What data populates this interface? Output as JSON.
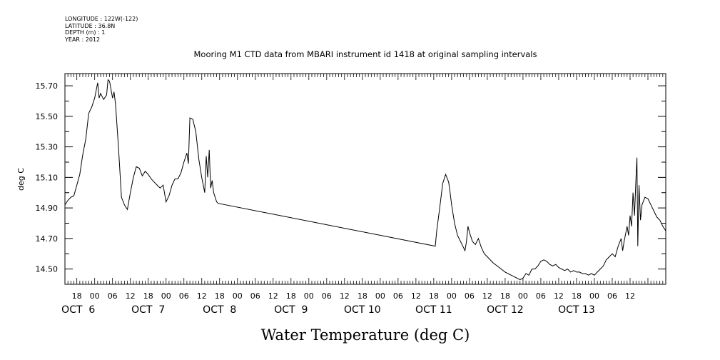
{
  "metadata": {
    "longitude": "LONGITUDE : 122W(-122)",
    "latitude": "LATITUDE : 36.8N",
    "depth": "DEPTH (m) : 1",
    "year": "YEAR : 2012"
  },
  "chart_data": {
    "type": "line",
    "title": "Mooring M1 CTD data from MBARI instrument id 1418 at original sampling intervals",
    "xlabel": "Water Temperature (deg C)",
    "ylabel": "deg C",
    "xlim_hours": [
      -10,
      192
    ],
    "ylim": [
      14.4,
      15.78
    ],
    "yticks": [
      "14.50",
      "14.70",
      "14.90",
      "15.10",
      "15.30",
      "15.50",
      "15.70"
    ],
    "x_time_ticks": [
      "18",
      "00",
      "06",
      "12",
      "18",
      "00",
      "06",
      "12",
      "18",
      "00",
      "06",
      "12",
      "18",
      "00",
      "06",
      "12",
      "18",
      "00",
      "06",
      "12",
      "18",
      "00",
      "06",
      "12",
      "18",
      "00",
      "06",
      "12",
      "18",
      "00",
      "06",
      "12"
    ],
    "x_day_labels": [
      "OCT  6",
      "OCT  7",
      "OCT  8",
      "OCT  9",
      "OCT 10",
      "OCT 11",
      "OCT 12",
      "OCT 13"
    ],
    "grid": false,
    "series": [
      {
        "color": "#000000",
        "points": [
          [
            -10,
            14.92
          ],
          [
            -9,
            14.95
          ],
          [
            -8,
            14.97
          ],
          [
            -7,
            14.98
          ],
          [
            -6,
            15.05
          ],
          [
            -5,
            15.12
          ],
          [
            -4,
            15.25
          ],
          [
            -3,
            15.35
          ],
          [
            -2,
            15.52
          ],
          [
            -1,
            15.56
          ],
          [
            0,
            15.62
          ],
          [
            1,
            15.72
          ],
          [
            1.5,
            15.62
          ],
          [
            2,
            15.65
          ],
          [
            3,
            15.61
          ],
          [
            4,
            15.64
          ],
          [
            4.5,
            15.74
          ],
          [
            5,
            15.73
          ],
          [
            6,
            15.62
          ],
          [
            6.5,
            15.66
          ],
          [
            7,
            15.58
          ],
          [
            8,
            15.3
          ],
          [
            9,
            14.97
          ],
          [
            10,
            14.92
          ],
          [
            11,
            14.89
          ],
          [
            12,
            15.0
          ],
          [
            13,
            15.1
          ],
          [
            14,
            15.17
          ],
          [
            15,
            15.16
          ],
          [
            16,
            15.11
          ],
          [
            17,
            15.14
          ],
          [
            18,
            15.12
          ],
          [
            19,
            15.09
          ],
          [
            20,
            15.07
          ],
          [
            21,
            15.05
          ],
          [
            22,
            15.03
          ],
          [
            23,
            15.05
          ],
          [
            24,
            14.94
          ],
          [
            25,
            14.98
          ],
          [
            26,
            15.05
          ],
          [
            27,
            15.09
          ],
          [
            28,
            15.09
          ],
          [
            29,
            15.13
          ],
          [
            30,
            15.2
          ],
          [
            31,
            15.26
          ],
          [
            31.5,
            15.19
          ],
          [
            32,
            15.49
          ],
          [
            33,
            15.48
          ],
          [
            34,
            15.4
          ],
          [
            35,
            15.22
          ],
          [
            36,
            15.1
          ],
          [
            37,
            15.0
          ],
          [
            37.5,
            15.24
          ],
          [
            38,
            15.1
          ],
          [
            38.5,
            15.28
          ],
          [
            39,
            15.03
          ],
          [
            39.5,
            15.08
          ],
          [
            40,
            15.0
          ],
          [
            41,
            14.94
          ],
          [
            41.5,
            14.93
          ],
          [
            114.5,
            14.65
          ],
          [
            115,
            14.75
          ],
          [
            116,
            14.9
          ],
          [
            117,
            15.06
          ],
          [
            118,
            15.12
          ],
          [
            119,
            15.07
          ],
          [
            119.5,
            15.0
          ],
          [
            120,
            14.92
          ],
          [
            121,
            14.8
          ],
          [
            122,
            14.72
          ],
          [
            123,
            14.68
          ],
          [
            124,
            14.64
          ],
          [
            124.5,
            14.62
          ],
          [
            125,
            14.68
          ],
          [
            125.5,
            14.78
          ],
          [
            126,
            14.74
          ],
          [
            127,
            14.68
          ],
          [
            128,
            14.66
          ],
          [
            129,
            14.7
          ],
          [
            130,
            14.64
          ],
          [
            131,
            14.6
          ],
          [
            132,
            14.58
          ],
          [
            134,
            14.54
          ],
          [
            136,
            14.51
          ],
          [
            138,
            14.48
          ],
          [
            140,
            14.46
          ],
          [
            142,
            14.44
          ],
          [
            143,
            14.43
          ],
          [
            144,
            14.44
          ],
          [
            145,
            14.47
          ],
          [
            146,
            14.46
          ],
          [
            147,
            14.5
          ],
          [
            148,
            14.5
          ],
          [
            149,
            14.52
          ],
          [
            150,
            14.55
          ],
          [
            151,
            14.56
          ],
          [
            152,
            14.55
          ],
          [
            153,
            14.53
          ],
          [
            154,
            14.52
          ],
          [
            155,
            14.53
          ],
          [
            156,
            14.51
          ],
          [
            157,
            14.5
          ],
          [
            158,
            14.49
          ],
          [
            159,
            14.5
          ],
          [
            160,
            14.48
          ],
          [
            161,
            14.49
          ],
          [
            162,
            14.48
          ],
          [
            163,
            14.48
          ],
          [
            164,
            14.47
          ],
          [
            165,
            14.47
          ],
          [
            166,
            14.46
          ],
          [
            167,
            14.47
          ],
          [
            168,
            14.46
          ],
          [
            169,
            14.48
          ],
          [
            170,
            14.5
          ],
          [
            171,
            14.52
          ],
          [
            172,
            14.56
          ],
          [
            173,
            14.58
          ],
          [
            174,
            14.6
          ],
          [
            175,
            14.58
          ],
          [
            176,
            14.65
          ],
          [
            177,
            14.7
          ],
          [
            177.5,
            14.62
          ],
          [
            178,
            14.68
          ],
          [
            179,
            14.78
          ],
          [
            179.5,
            14.72
          ],
          [
            180,
            14.85
          ],
          [
            180.5,
            14.78
          ],
          [
            181,
            15.0
          ],
          [
            181.5,
            14.85
          ],
          [
            182,
            15.1
          ],
          [
            182.3,
            15.23
          ],
          [
            182.6,
            14.65
          ],
          [
            183,
            15.05
          ],
          [
            183.5,
            14.82
          ],
          [
            184,
            14.92
          ],
          [
            185,
            14.97
          ],
          [
            186,
            14.96
          ],
          [
            187,
            14.92
          ],
          [
            188,
            14.88
          ],
          [
            189,
            14.84
          ],
          [
            190,
            14.82
          ],
          [
            191,
            14.78
          ],
          [
            192,
            14.75
          ]
        ]
      }
    ]
  }
}
